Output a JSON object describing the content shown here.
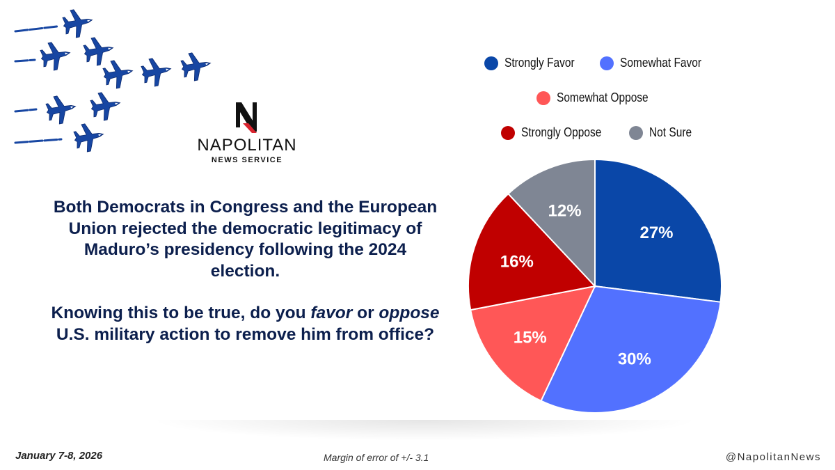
{
  "brand": {
    "name": "NAPOLITAN",
    "subtitle": "NEWS SERVICE",
    "logo_letter": "N",
    "handle": "@NapolitanNews"
  },
  "question": {
    "context": "Both Democrats in Congress and the European Union rejected the democratic legitimacy of Maduro’s presidency following the 2024 election.",
    "prompt_part1": "Knowing this to be true, do you ",
    "prompt_em1": "favor",
    "prompt_part2": " or ",
    "prompt_em2": "oppose",
    "prompt_part3": " U.S. military action to remove him from office?"
  },
  "footer": {
    "date": "January 7-8, 2026",
    "margin_of_error": "Margin of error of +/- 3.1"
  },
  "decoration": {
    "jet_icon": "fighter-jet-icon",
    "jet_color": "#1746a2"
  },
  "chart_data": {
    "type": "pie",
    "title": "",
    "legend_placement": "top",
    "slices": [
      {
        "label": "Strongly Favor",
        "value": 27,
        "display": "27%",
        "color": "#0a47a8"
      },
      {
        "label": "Somewhat Favor",
        "value": 30,
        "display": "30%",
        "color": "#5271ff"
      },
      {
        "label": "Somewhat Oppose",
        "value": 15,
        "display": "15%",
        "color": "#ff5757"
      },
      {
        "label": "Strongly Oppose",
        "value": 16,
        "display": "16%",
        "color": "#c00000"
      },
      {
        "label": "Not Sure",
        "value": 12,
        "display": "12%",
        "color": "#7f8694"
      }
    ]
  }
}
